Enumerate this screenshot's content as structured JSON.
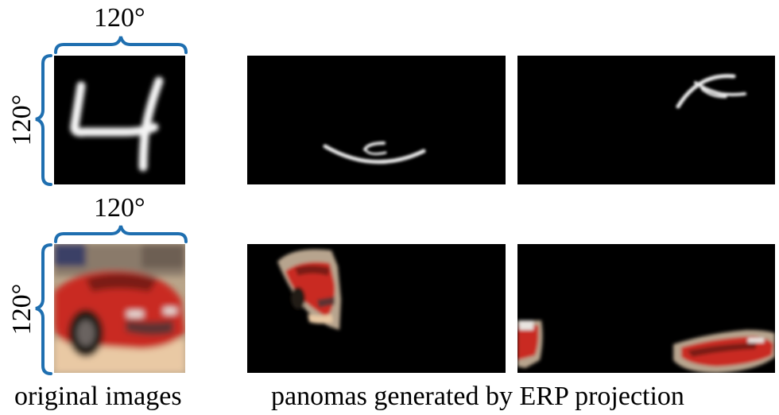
{
  "labels": {
    "top_width": "120°",
    "top_height": "120°",
    "bottom_width": "120°",
    "bottom_height": "120°"
  },
  "captions": {
    "left": "original images",
    "right": "panomas generated by ERP projection"
  },
  "colors": {
    "bracket": "#1f6fb0",
    "background": "#000000"
  }
}
